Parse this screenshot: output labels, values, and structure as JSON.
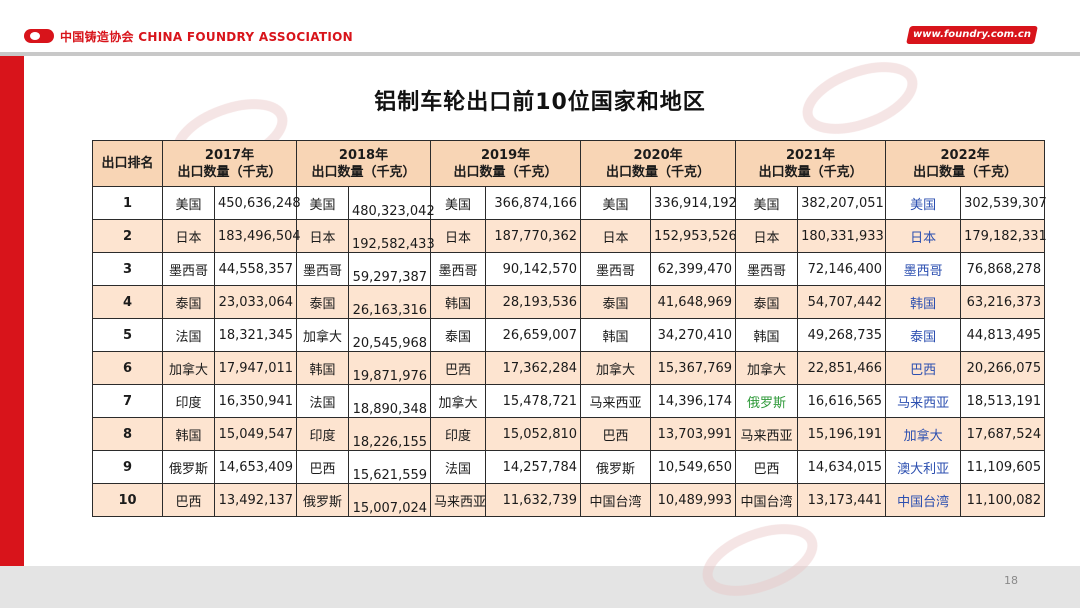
{
  "header": {
    "logo_text": "中国铸造协会 CHINA FOUNDRY ASSOCIATION",
    "url": "www.foundry.com.cn"
  },
  "page_number": "18",
  "colors": {
    "brand_red": "#d8141b",
    "header_fill": "#f8d5b5",
    "alt_row": "#fde4d0",
    "green_text": "#2f9a3a",
    "blue_text": "#2c4fb0"
  },
  "chart_data": {
    "type": "table",
    "title": "铝制车轮出口前10位国家和地区",
    "columns": [
      {
        "label": "出口排名"
      },
      {
        "label": "2017年\n出口数量（千克）",
        "year": "2017年",
        "sub": "出口数量（千克）"
      },
      {
        "label": "2018年\n出口数量（千克）",
        "year": "2018年",
        "sub": "出口数量（千克）"
      },
      {
        "label": "2019年\n出口数量（千克）",
        "year": "2019年",
        "sub": "出口数量（千克）"
      },
      {
        "label": "2020年\n出口数量（千克）",
        "year": "2020年",
        "sub": "出口数量（千克）"
      },
      {
        "label": "2021年\n出口数量（千克）",
        "year": "2021年",
        "sub": "出口数量（千克）"
      },
      {
        "label": "2022年\n出口数量（千克）",
        "year": "2022年",
        "sub": "出口数量（千克）"
      }
    ],
    "rows": [
      {
        "rank": "1",
        "entries": [
          [
            "美国",
            "450,636,248"
          ],
          [
            "美国",
            "480,323,042"
          ],
          [
            "美国",
            "366,874,166"
          ],
          [
            "美国",
            "336,914,192"
          ],
          [
            "美国",
            "382,207,051"
          ],
          [
            "美国",
            "302,539,307"
          ]
        ]
      },
      {
        "rank": "2",
        "entries": [
          [
            "日本",
            "183,496,504"
          ],
          [
            "日本",
            "192,582,433"
          ],
          [
            "日本",
            "187,770,362"
          ],
          [
            "日本",
            "152,953,526"
          ],
          [
            "日本",
            "180,331,933"
          ],
          [
            "日本",
            "179,182,331"
          ]
        ]
      },
      {
        "rank": "3",
        "entries": [
          [
            "墨西哥",
            "44,558,357"
          ],
          [
            "墨西哥",
            "59,297,387"
          ],
          [
            "墨西哥",
            "90,142,570"
          ],
          [
            "墨西哥",
            "62,399,470"
          ],
          [
            "墨西哥",
            "72,146,400"
          ],
          [
            "墨西哥",
            "76,868,278"
          ]
        ]
      },
      {
        "rank": "4",
        "entries": [
          [
            "泰国",
            "23,033,064"
          ],
          [
            "泰国",
            "26,163,316"
          ],
          [
            "韩国",
            "28,193,536"
          ],
          [
            "泰国",
            "41,648,969"
          ],
          [
            "泰国",
            "54,707,442"
          ],
          [
            "韩国",
            "63,216,373"
          ]
        ]
      },
      {
        "rank": "5",
        "entries": [
          [
            "法国",
            "18,321,345"
          ],
          [
            "加拿大",
            "20,545,968"
          ],
          [
            "泰国",
            "26,659,007"
          ],
          [
            "韩国",
            "34,270,410"
          ],
          [
            "韩国",
            "49,268,735"
          ],
          [
            "泰国",
            "44,813,495"
          ]
        ]
      },
      {
        "rank": "6",
        "entries": [
          [
            "加拿大",
            "17,947,011"
          ],
          [
            "韩国",
            "19,871,976"
          ],
          [
            "巴西",
            "17,362,284"
          ],
          [
            "加拿大",
            "15,367,769"
          ],
          [
            "加拿大",
            "22,851,466"
          ],
          [
            "巴西",
            "20,266,075"
          ]
        ]
      },
      {
        "rank": "7",
        "entries": [
          [
            "印度",
            "16,350,941"
          ],
          [
            "法国",
            "18,890,348"
          ],
          [
            "加拿大",
            "15,478,721"
          ],
          [
            "马来西亚",
            "14,396,174"
          ],
          [
            "俄罗斯",
            "16,616,565"
          ],
          [
            "马来西亚",
            "18,513,191"
          ]
        ]
      },
      {
        "rank": "8",
        "entries": [
          [
            "韩国",
            "15,049,547"
          ],
          [
            "印度",
            "18,226,155"
          ],
          [
            "印度",
            "15,052,810"
          ],
          [
            "巴西",
            "13,703,991"
          ],
          [
            "马来西亚",
            "15,196,191"
          ],
          [
            "加拿大",
            "17,687,524"
          ]
        ]
      },
      {
        "rank": "9",
        "entries": [
          [
            "俄罗斯",
            "14,653,409"
          ],
          [
            "巴西",
            "15,621,559"
          ],
          [
            "法国",
            "14,257,784"
          ],
          [
            "俄罗斯",
            "10,549,650"
          ],
          [
            "巴西",
            "14,634,015"
          ],
          [
            "澳大利亚",
            "11,109,605"
          ]
        ]
      },
      {
        "rank": "10",
        "entries": [
          [
            "巴西",
            "13,492,137"
          ],
          [
            "俄罗斯",
            "15,007,024"
          ],
          [
            "马来西亚",
            "11,632,739"
          ],
          [
            "中国台湾",
            "10,489,993"
          ],
          [
            "中国台湾",
            "13,173,441"
          ],
          [
            "中国台湾",
            "11,100,082"
          ]
        ]
      }
    ]
  }
}
